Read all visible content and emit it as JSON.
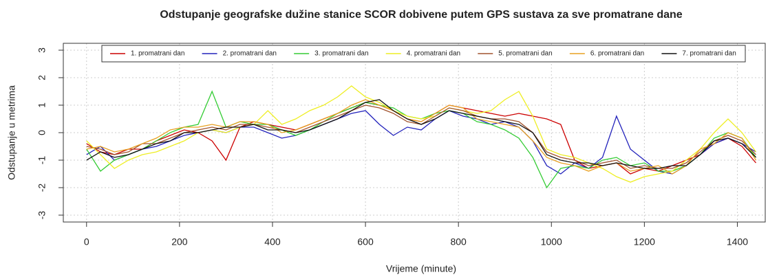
{
  "chart_data": {
    "type": "line",
    "title": "Odstupanje geografske dužine stanice SCOR dobivene putem GPS sustava za sve promatrane dane",
    "x_label": "Vrijeme (minute)",
    "y_label": "Odstupanje u metrima",
    "x": [
      0,
      30,
      60,
      90,
      120,
      150,
      180,
      210,
      240,
      270,
      300,
      330,
      360,
      390,
      420,
      450,
      480,
      510,
      540,
      570,
      600,
      630,
      660,
      690,
      720,
      750,
      780,
      810,
      840,
      870,
      900,
      930,
      960,
      990,
      1020,
      1050,
      1080,
      1110,
      1140,
      1170,
      1200,
      1230,
      1260,
      1290,
      1320,
      1350,
      1380,
      1410,
      1440
    ],
    "xlim": [
      -50,
      1460
    ],
    "xticks": [
      0,
      200,
      400,
      600,
      800,
      1000,
      1200,
      1400
    ],
    "ylim": [
      -3.25,
      3.25
    ],
    "yticks": [
      -3,
      -2,
      -1,
      0,
      1,
      2,
      3
    ],
    "grid": true,
    "legend": "top",
    "series": [
      {
        "name": "1. promatrani dan",
        "color": "#cc0000",
        "values": [
          -0.4,
          -0.7,
          -0.8,
          -0.6,
          -0.6,
          -0.3,
          -0.1,
          0.1,
          0.0,
          -0.3,
          -1.0,
          0.2,
          0.4,
          0.3,
          0.2,
          0.1,
          0.3,
          0.5,
          0.7,
          0.9,
          1.1,
          1.0,
          0.8,
          0.5,
          0.4,
          0.7,
          1.0,
          0.9,
          0.8,
          0.7,
          0.6,
          0.7,
          0.6,
          0.5,
          0.3,
          -1.0,
          -1.3,
          -1.2,
          -1.1,
          -1.5,
          -1.3,
          -1.4,
          -1.2,
          -1.0,
          -0.8,
          -0.4,
          -0.2,
          -0.5,
          -1.1
        ]
      },
      {
        "name": "2. promatrani dan",
        "color": "#2222bb",
        "values": [
          -0.8,
          -0.5,
          -1.0,
          -0.8,
          -0.6,
          -0.5,
          -0.3,
          -0.1,
          0.0,
          0.1,
          0.0,
          0.2,
          0.2,
          0.0,
          -0.2,
          -0.1,
          0.1,
          0.3,
          0.5,
          0.7,
          0.8,
          0.3,
          -0.1,
          0.2,
          0.1,
          0.5,
          0.8,
          0.6,
          0.5,
          0.3,
          0.4,
          0.2,
          -0.3,
          -1.2,
          -1.5,
          -1.1,
          -1.3,
          -0.9,
          0.6,
          -0.6,
          -1.0,
          -1.4,
          -1.5,
          -1.2,
          -0.8,
          -0.4,
          -0.2,
          -0.4,
          -0.7
        ]
      },
      {
        "name": "3. promatrani dan",
        "color": "#33cc33",
        "values": [
          -0.6,
          -1.4,
          -1.0,
          -0.8,
          -0.6,
          -0.3,
          0.0,
          0.2,
          0.3,
          1.5,
          0.2,
          0.4,
          0.3,
          0.3,
          0.1,
          -0.1,
          0.1,
          0.4,
          0.7,
          0.9,
          1.1,
          1.0,
          0.9,
          0.6,
          0.5,
          0.7,
          0.8,
          0.7,
          0.4,
          0.3,
          0.1,
          -0.2,
          -0.9,
          -2.0,
          -1.3,
          -1.2,
          -1.3,
          -1.0,
          -0.9,
          -1.2,
          -1.1,
          -1.4,
          -1.4,
          -1.2,
          -0.8,
          -0.2,
          0.0,
          -0.2,
          -0.9
        ]
      },
      {
        "name": "4. promatrani dan",
        "color": "#eeee22",
        "values": [
          -0.3,
          -0.8,
          -1.3,
          -1.0,
          -0.8,
          -0.7,
          -0.5,
          -0.3,
          0.0,
          0.1,
          0.0,
          0.2,
          0.3,
          0.8,
          0.3,
          0.5,
          0.8,
          1.0,
          1.3,
          1.7,
          1.3,
          1.1,
          0.8,
          0.6,
          0.5,
          0.6,
          0.9,
          0.8,
          0.7,
          0.8,
          1.2,
          1.5,
          0.6,
          -0.6,
          -0.8,
          -0.9,
          -1.1,
          -1.3,
          -1.6,
          -1.8,
          -1.6,
          -1.5,
          -1.4,
          -1.0,
          -0.6,
          0.0,
          0.5,
          0.0,
          -0.7
        ]
      },
      {
        "name": "5. promatrani dan",
        "color": "#a0522d",
        "values": [
          -0.5,
          -0.6,
          -0.8,
          -0.7,
          -0.4,
          -0.4,
          -0.2,
          0.0,
          0.1,
          0.2,
          0.1,
          0.3,
          0.3,
          0.2,
          0.1,
          0.0,
          0.2,
          0.4,
          0.6,
          0.8,
          1.0,
          0.9,
          0.7,
          0.4,
          0.3,
          0.6,
          0.9,
          0.8,
          0.6,
          0.5,
          0.5,
          0.4,
          0.0,
          -0.7,
          -0.9,
          -1.0,
          -1.2,
          -1.1,
          -1.0,
          -1.3,
          -1.2,
          -1.3,
          -1.3,
          -1.1,
          -0.7,
          -0.3,
          -0.1,
          -0.3,
          -0.8
        ]
      },
      {
        "name": "6. promatrani dan",
        "color": "#e8a020",
        "values": [
          -0.6,
          -0.5,
          -0.7,
          -0.6,
          -0.4,
          -0.2,
          0.1,
          0.2,
          0.2,
          0.3,
          0.2,
          0.4,
          0.4,
          0.3,
          0.0,
          0.1,
          0.3,
          0.5,
          0.7,
          1.0,
          1.2,
          1.0,
          0.8,
          0.5,
          0.4,
          0.7,
          1.0,
          0.9,
          0.5,
          0.4,
          0.3,
          0.2,
          -0.3,
          -0.9,
          -1.1,
          -1.2,
          -1.4,
          -1.2,
          -1.1,
          -1.4,
          -1.3,
          -1.2,
          -1.5,
          -1.2,
          -0.6,
          -0.4,
          0.0,
          -0.2,
          -1.0
        ]
      },
      {
        "name": "7. promatrani dan",
        "color": "#111111",
        "values": [
          -1.0,
          -0.7,
          -0.9,
          -0.8,
          -0.6,
          -0.4,
          -0.3,
          0.0,
          0.0,
          0.1,
          0.2,
          0.2,
          0.3,
          0.1,
          0.1,
          0.0,
          0.1,
          0.3,
          0.5,
          0.8,
          1.1,
          1.2,
          0.8,
          0.5,
          0.3,
          0.5,
          0.8,
          0.7,
          0.6,
          0.5,
          0.4,
          0.3,
          0.0,
          -0.8,
          -1.0,
          -1.1,
          -1.1,
          -1.2,
          -1.1,
          -1.2,
          -1.3,
          -1.3,
          -1.2,
          -1.2,
          -0.8,
          -0.3,
          -0.2,
          -0.4,
          -0.9
        ]
      }
    ]
  }
}
